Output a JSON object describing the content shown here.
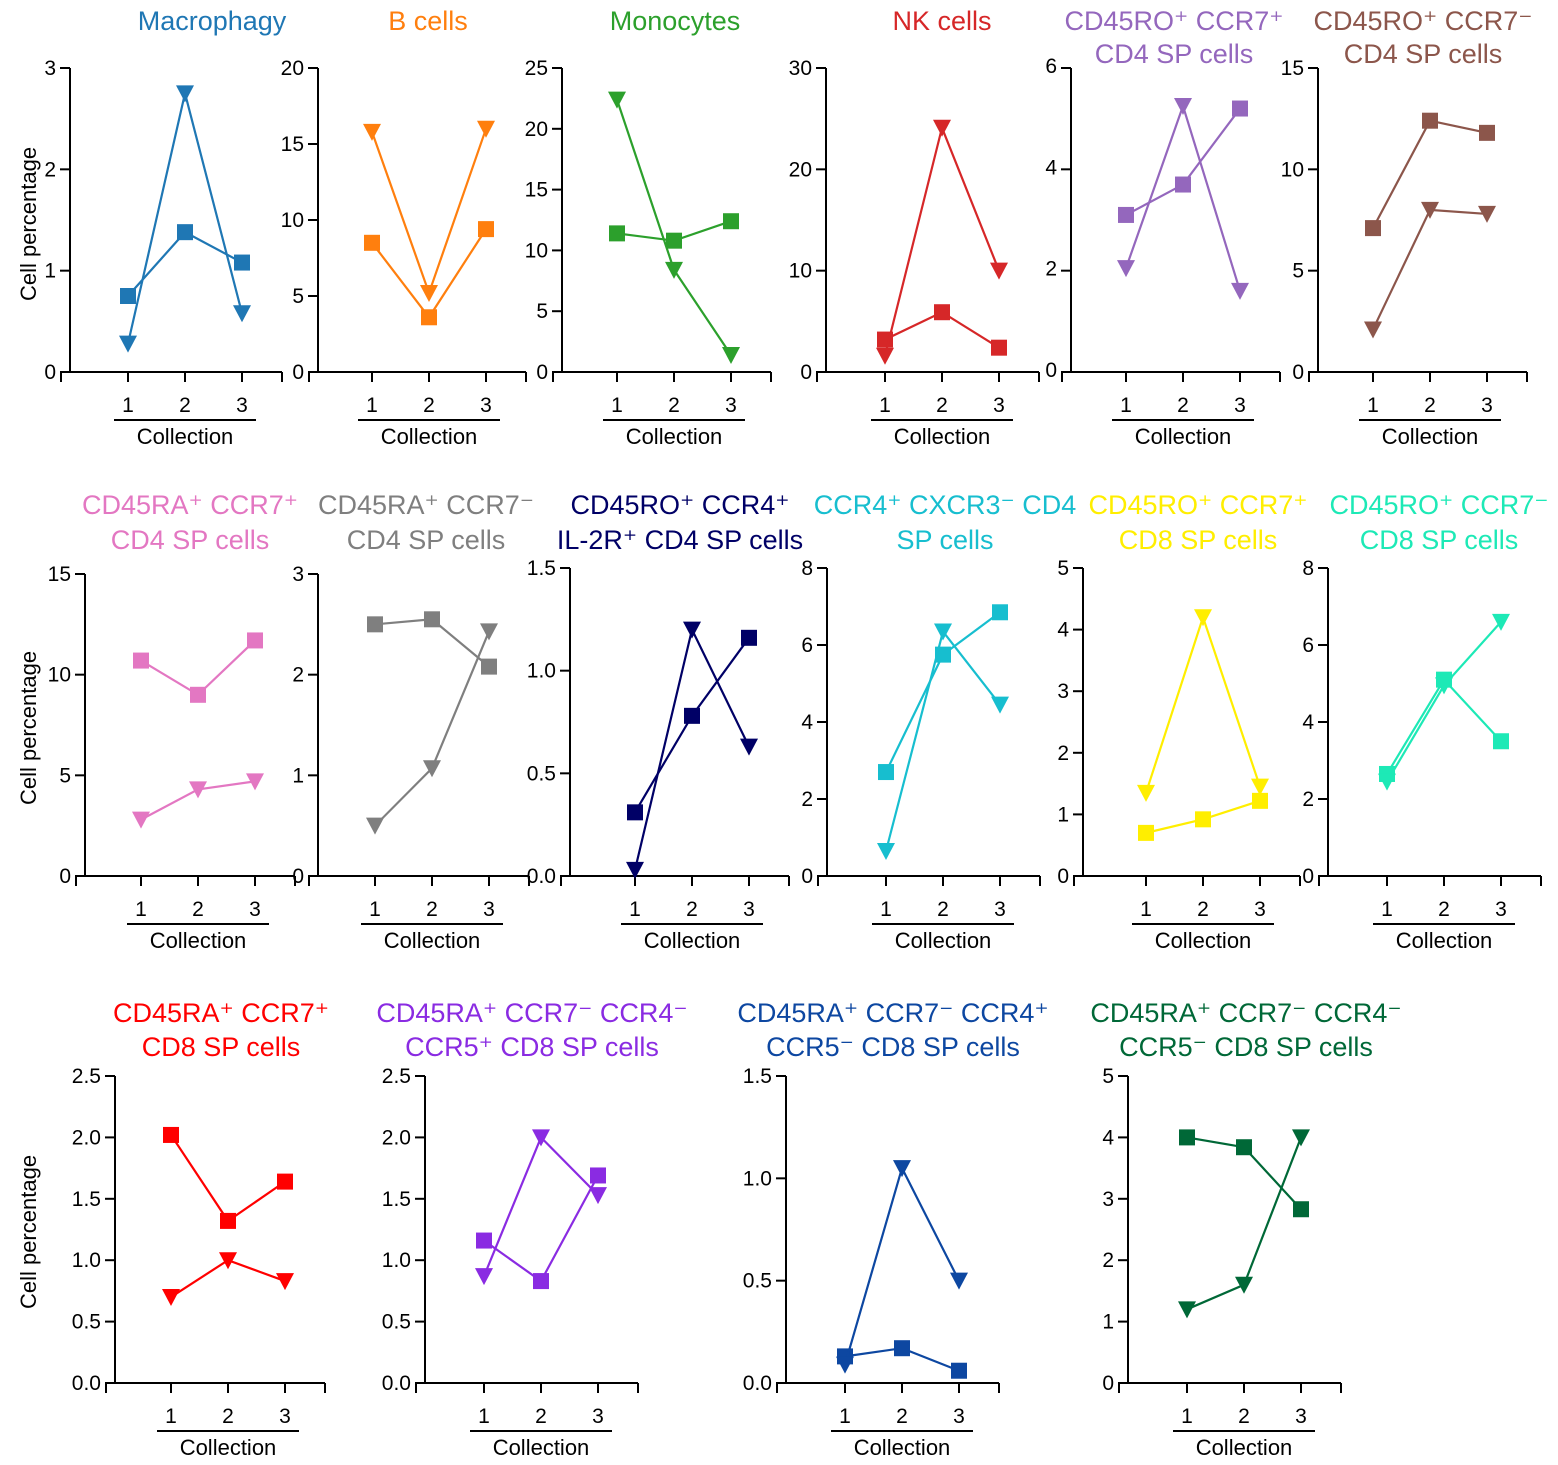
{
  "figure": {
    "ylabel": "Cell percentage",
    "xlabel": "Collection"
  },
  "chart_data": [
    {
      "type": "line",
      "title": [
        "Macrophagy"
      ],
      "color": "#1f77b4",
      "x": [
        1,
        2,
        3
      ],
      "ylim": [
        0,
        3
      ],
      "yticks": [
        "0",
        "1",
        "2",
        "3"
      ],
      "series": [
        {
          "marker": "square",
          "values": [
            0.75,
            1.38,
            1.08
          ]
        },
        {
          "marker": "triangle-down",
          "values": [
            0.28,
            2.75,
            0.58
          ]
        }
      ]
    },
    {
      "type": "line",
      "title": [
        "B cells"
      ],
      "color": "#ff7f0e",
      "x": [
        1,
        2,
        3
      ],
      "ylim": [
        0,
        20
      ],
      "yticks": [
        "0",
        "5",
        "10",
        "15",
        "20"
      ],
      "series": [
        {
          "marker": "square",
          "values": [
            8.5,
            3.6,
            9.4
          ]
        },
        {
          "marker": "triangle-down",
          "values": [
            15.8,
            5.2,
            16.0
          ]
        }
      ]
    },
    {
      "type": "line",
      "title": [
        "Monocytes"
      ],
      "color": "#2ca02c",
      "x": [
        1,
        2,
        3
      ],
      "ylim": [
        0,
        25
      ],
      "yticks": [
        "0",
        "5",
        "10",
        "15",
        "20",
        "25"
      ],
      "series": [
        {
          "marker": "square",
          "values": [
            11.4,
            10.8,
            12.4
          ]
        },
        {
          "marker": "triangle-down",
          "values": [
            22.4,
            8.4,
            1.4
          ]
        }
      ]
    },
    {
      "type": "line",
      "title": [
        "NK cells"
      ],
      "color": "#d62728",
      "x": [
        1,
        2,
        3
      ],
      "ylim": [
        0,
        30
      ],
      "yticks": [
        "0",
        "10",
        "20",
        "30"
      ],
      "series": [
        {
          "marker": "square",
          "values": [
            3.2,
            5.9,
            2.4
          ]
        },
        {
          "marker": "triangle-down",
          "values": [
            1.6,
            24.1,
            10.0
          ]
        }
      ]
    },
    {
      "type": "line",
      "title": [
        "CD45RO⁺ CCR7⁺",
        "CD4 SP cells"
      ],
      "color": "#9467bd",
      "x": [
        1,
        2,
        3
      ],
      "ylim": [
        0,
        6
      ],
      "yticks": [
        "0",
        "2",
        "4",
        "6"
      ],
      "small_ticks": true,
      "series": [
        {
          "marker": "square",
          "values": [
            3.1,
            3.7,
            5.2
          ]
        },
        {
          "marker": "triangle-down",
          "values": [
            2.05,
            5.25,
            1.6
          ]
        }
      ]
    },
    {
      "type": "line",
      "title": [
        "CD45RO⁺ CCR7⁻",
        "CD4 SP cells"
      ],
      "color": "#8c564b",
      "x": [
        1,
        2,
        3
      ],
      "ylim": [
        0,
        15
      ],
      "yticks": [
        "0",
        "5",
        "10",
        "15"
      ],
      "series": [
        {
          "marker": "square",
          "values": [
            7.1,
            12.4,
            11.8
          ]
        },
        {
          "marker": "triangle-down",
          "values": [
            2.1,
            8.0,
            7.8
          ]
        }
      ]
    },
    {
      "type": "line",
      "title": [
        "CD45RA⁺ CCR7⁺",
        "CD4 SP cells"
      ],
      "color": "#e377c2",
      "x": [
        1,
        2,
        3
      ],
      "ylim": [
        0,
        15
      ],
      "yticks": [
        "0",
        "5",
        "10",
        "15"
      ],
      "series": [
        {
          "marker": "square",
          "values": [
            10.7,
            9.0,
            11.7
          ]
        },
        {
          "marker": "triangle-down",
          "values": [
            2.8,
            4.3,
            4.7
          ]
        }
      ]
    },
    {
      "type": "line",
      "title": [
        "CD45RA⁺ CCR7⁻",
        "CD4 SP cells"
      ],
      "color": "#7f7f7f",
      "x": [
        1,
        2,
        3
      ],
      "ylim": [
        0,
        3
      ],
      "yticks": [
        "0",
        "1",
        "2",
        "3"
      ],
      "series": [
        {
          "marker": "square",
          "values": [
            2.5,
            2.55,
            2.08
          ]
        },
        {
          "marker": "triangle-down",
          "values": [
            0.5,
            1.07,
            2.43
          ]
        }
      ]
    },
    {
      "type": "line",
      "title": [
        "CD45RO⁺ CCR4⁺",
        "IL-2R⁺ CD4 SP cells"
      ],
      "color": "#000066",
      "x": [
        1,
        2,
        3
      ],
      "ylim": [
        0,
        1.5
      ],
      "yticks": [
        "0.0",
        "0.5",
        "1.0",
        "1.5"
      ],
      "series": [
        {
          "marker": "square",
          "values": [
            0.31,
            0.78,
            1.16
          ]
        },
        {
          "marker": "triangle-down",
          "values": [
            0.03,
            1.2,
            0.63
          ]
        }
      ]
    },
    {
      "type": "line",
      "title": [
        "CCR4⁺ CXCR3⁻ CD4",
        "SP cells"
      ],
      "color": "#17becf",
      "x": [
        1,
        2,
        3
      ],
      "ylim": [
        0,
        8
      ],
      "yticks": [
        "0",
        "2",
        "4",
        "6",
        "8"
      ],
      "series": [
        {
          "marker": "square",
          "values": [
            2.7,
            5.75,
            6.85
          ]
        },
        {
          "marker": "triangle-down",
          "values": [
            0.65,
            6.35,
            4.45
          ]
        }
      ]
    },
    {
      "type": "line",
      "title": [
        "CD45RO⁺ CCR7⁺",
        "CD8 SP cells"
      ],
      "color": "#ffee00",
      "x": [
        1,
        2,
        3
      ],
      "ylim": [
        0,
        5
      ],
      "yticks": [
        "0",
        "1",
        "2",
        "3",
        "4",
        "5"
      ],
      "series": [
        {
          "marker": "square",
          "values": [
            0.7,
            0.92,
            1.22
          ]
        },
        {
          "marker": "triangle-down",
          "values": [
            1.35,
            4.2,
            1.45
          ]
        }
      ]
    },
    {
      "type": "line",
      "title": [
        "CD45RO⁺ CCR7⁻",
        "CD8 SP cells"
      ],
      "color": "#1de9b6",
      "x": [
        1,
        2,
        3
      ],
      "ylim": [
        0,
        8
      ],
      "yticks": [
        "0",
        "2",
        "4",
        "6",
        "8"
      ],
      "series": [
        {
          "marker": "square",
          "values": [
            2.65,
            5.1,
            3.5
          ]
        },
        {
          "marker": "triangle-down",
          "values": [
            2.45,
            4.95,
            6.6
          ]
        }
      ]
    },
    {
      "type": "line",
      "title": [
        "CD45RA⁺ CCR7⁺",
        "CD8 SP cells"
      ],
      "color": "#ff0000",
      "x": [
        1,
        2,
        3
      ],
      "ylim": [
        0,
        2.5
      ],
      "yticks": [
        "0.0",
        "0.5",
        "1.0",
        "1.5",
        "2.0",
        "2.5"
      ],
      "series": [
        {
          "marker": "square",
          "values": [
            2.02,
            1.32,
            1.64
          ]
        },
        {
          "marker": "triangle-down",
          "values": [
            0.7,
            1.0,
            0.83
          ]
        }
      ]
    },
    {
      "type": "line",
      "title": [
        "CD45RA⁺ CCR7⁻ CCR4⁻",
        "CCR5⁺ CD8 SP cells"
      ],
      "color": "#8a2be2",
      "x": [
        1,
        2,
        3
      ],
      "ylim": [
        0,
        2.5
      ],
      "yticks": [
        "0.0",
        "0.5",
        "1.0",
        "1.5",
        "2.0",
        "2.5"
      ],
      "series": [
        {
          "marker": "square",
          "values": [
            1.16,
            0.83,
            1.69
          ]
        },
        {
          "marker": "triangle-down",
          "values": [
            0.87,
            2.0,
            1.53
          ]
        }
      ]
    },
    {
      "type": "line",
      "title": [
        "CD45RA⁺ CCR7⁻ CCR4⁺",
        "CCR5⁻ CD8 SP cells"
      ],
      "color": "#0d47a1",
      "x": [
        1,
        2,
        3
      ],
      "ylim": [
        0,
        1.5
      ],
      "yticks": [
        "0.0",
        "0.5",
        "1.0",
        "1.5"
      ],
      "series": [
        {
          "marker": "square",
          "values": [
            0.13,
            0.17,
            0.06
          ]
        },
        {
          "marker": "triangle-down",
          "values": [
            0.09,
            1.05,
            0.5
          ]
        }
      ]
    },
    {
      "type": "line",
      "title": [
        "CD45RA⁺ CCR7⁻ CCR4⁻",
        "CCR5⁻ CD8 SP cells"
      ],
      "color": "#006837",
      "x": [
        1,
        2,
        3
      ],
      "ylim": [
        0,
        5
      ],
      "yticks": [
        "0",
        "1",
        "2",
        "3",
        "4",
        "5"
      ],
      "series": [
        {
          "marker": "square",
          "values": [
            4.0,
            3.84,
            2.83
          ]
        },
        {
          "marker": "triangle-down",
          "values": [
            1.2,
            1.6,
            4.0
          ]
        }
      ]
    }
  ]
}
